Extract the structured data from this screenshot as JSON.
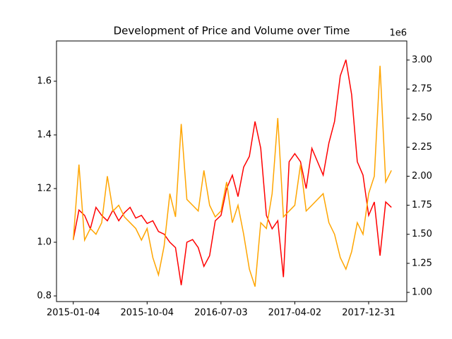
{
  "chart_data": {
    "type": "line",
    "title": "Development of Price and Volume over Time",
    "x": [
      "2015-01-04",
      "2015-01-25",
      "2015-02-15",
      "2015-03-08",
      "2015-03-29",
      "2015-04-19",
      "2015-05-10",
      "2015-05-31",
      "2015-06-21",
      "2015-07-12",
      "2015-08-02",
      "2015-08-23",
      "2015-09-13",
      "2015-10-04",
      "2015-10-25",
      "2015-11-15",
      "2015-12-06",
      "2015-12-27",
      "2016-01-17",
      "2016-02-07",
      "2016-02-28",
      "2016-03-20",
      "2016-04-10",
      "2016-05-01",
      "2016-05-22",
      "2016-06-12",
      "2016-07-03",
      "2016-07-24",
      "2016-08-14",
      "2016-09-04",
      "2016-09-25",
      "2016-10-16",
      "2016-11-06",
      "2016-11-27",
      "2016-12-18",
      "2017-01-08",
      "2017-01-29",
      "2017-02-19",
      "2017-03-12",
      "2017-04-02",
      "2017-04-23",
      "2017-05-14",
      "2017-06-04",
      "2017-06-25",
      "2017-07-16",
      "2017-08-06",
      "2017-08-27",
      "2017-09-17",
      "2017-10-08",
      "2017-10-29",
      "2017-11-19",
      "2017-12-10",
      "2017-12-31",
      "2018-01-21",
      "2018-02-11",
      "2018-03-04",
      "2018-03-25"
    ],
    "xlim": [
      "2014-11-03",
      "2018-05-21"
    ],
    "xticks": [
      "2015-01-04",
      "2015-10-04",
      "2016-07-03",
      "2017-04-02",
      "2017-12-31"
    ],
    "series": [
      {
        "color": "#ff0000",
        "values": [
          1.01,
          1.12,
          1.1,
          1.05,
          1.13,
          1.1,
          1.08,
          1.12,
          1.08,
          1.11,
          1.13,
          1.09,
          1.1,
          1.07,
          1.08,
          1.04,
          1.03,
          1.0,
          0.98,
          0.84,
          1.0,
          1.01,
          0.98,
          0.91,
          0.95,
          1.08,
          1.1,
          1.2,
          1.25,
          1.17,
          1.28,
          1.32,
          1.45,
          1.35,
          1.1,
          1.05,
          1.08,
          0.87,
          1.3,
          1.33,
          1.3,
          1.2,
          1.35,
          1.3,
          1.25,
          1.37,
          1.45,
          1.62,
          1.68,
          1.55,
          1.3,
          1.25,
          1.1,
          1.15,
          0.95,
          1.15,
          1.13
        ]
      },
      {
        "color": "#ffa500",
        "axis": "y2",
        "values": [
          1450000,
          2100000,
          1450000,
          1550000,
          1500000,
          1600000,
          2000000,
          1700000,
          1750000,
          1650000,
          1600000,
          1550000,
          1450000,
          1550000,
          1300000,
          1150000,
          1400000,
          1850000,
          1650000,
          2450000,
          1800000,
          1750000,
          1700000,
          2050000,
          1750000,
          1650000,
          1700000,
          1950000,
          1600000,
          1750000,
          1500000,
          1200000,
          1050000,
          1600000,
          1550000,
          1850000,
          2500000,
          1650000,
          1700000,
          1750000,
          2100000,
          1700000,
          1750000,
          1800000,
          1850000,
          1600000,
          1500000,
          1300000,
          1200000,
          1350000,
          1600000,
          1500000,
          1850000,
          2000000,
          2950000,
          1950000,
          2050000
        ]
      }
    ],
    "ylim": [
      0.779,
      1.75
    ],
    "yticks": [
      0.8,
      {
        "value": 1.0,
        "label": "1.0"
      },
      1.2,
      1.4,
      1.6
    ],
    "y2lim": [
      921000,
      3164000
    ],
    "y2ticks": [
      {
        "value": 1000000,
        "label": "1.00"
      },
      {
        "value": 1250000,
        "label": "1.25"
      },
      {
        "value": 1500000,
        "label": "1.50"
      },
      {
        "value": 1750000,
        "label": "1.75"
      },
      {
        "value": 2000000,
        "label": "2.00"
      },
      {
        "value": 2250000,
        "label": "2.25"
      },
      {
        "value": 2500000,
        "label": "2.50"
      },
      {
        "value": 2750000,
        "label": "2.75"
      },
      {
        "value": 3000000,
        "label": "3.00"
      }
    ],
    "y2_offset_label": "1e6"
  }
}
